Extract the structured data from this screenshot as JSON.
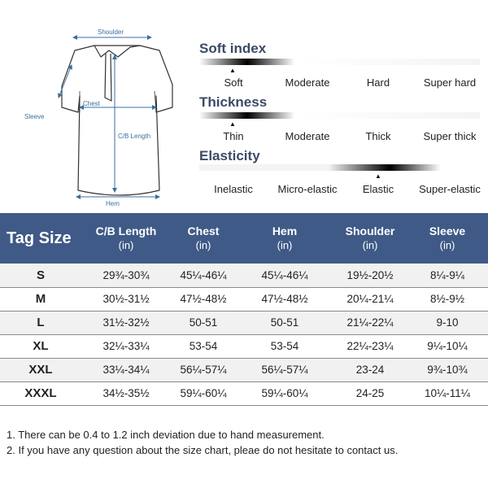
{
  "diagram": {
    "shoulder_label": "Shoulder",
    "chest_label": "Chest",
    "sleeve_label": "Sleeve",
    "cb_length_label": "C/B Length",
    "hem_label": "Hem"
  },
  "scales": {
    "soft": {
      "title": "Soft index",
      "labels": [
        "Soft",
        "Moderate",
        "Hard",
        "Super hard"
      ],
      "selected": "Soft"
    },
    "thickness": {
      "title": "Thickness",
      "labels": [
        "Thin",
        "Moderate",
        "Thick",
        "Super thick"
      ],
      "selected": "Thin"
    },
    "elasticity": {
      "title": "Elasticity",
      "labels": [
        "Inelastic",
        "Micro-elastic",
        "Elastic",
        "Super-elastic"
      ],
      "selected": "Elastic"
    }
  },
  "table": {
    "headers": {
      "tag_size": "Tag Size",
      "cb_length": "C/B Length",
      "chest": "Chest",
      "hem": "Hem",
      "shoulder": "Shoulder",
      "sleeve": "Sleeve",
      "unit": "(in)"
    },
    "rows": [
      {
        "size": "S",
        "cb_length": "29¾-30¾",
        "chest": "45¼-46¼",
        "hem": "45¼-46¼",
        "shoulder": "19½-20½",
        "sleeve": "8¼-9¼"
      },
      {
        "size": "M",
        "cb_length": "30½-31½",
        "chest": "47½-48½",
        "hem": "47½-48½",
        "shoulder": "20¼-21¼",
        "sleeve": "8½-9½"
      },
      {
        "size": "L",
        "cb_length": "31½-32½",
        "chest": "50-51",
        "hem": "50-51",
        "shoulder": "21¼-22¼",
        "sleeve": "9-10"
      },
      {
        "size": "XL",
        "cb_length": "32¼-33¼",
        "chest": "53-54",
        "hem": "53-54",
        "shoulder": "22¼-23¼",
        "sleeve": "9¼-10¼"
      },
      {
        "size": "XXL",
        "cb_length": "33¼-34¼",
        "chest": "56¼-57¼",
        "hem": "56¼-57¼",
        "shoulder": "23-24",
        "sleeve": "9¾-10¾"
      },
      {
        "size": "XXXL",
        "cb_length": "34½-35½",
        "chest": "59¼-60¼",
        "hem": "59¼-60¼",
        "shoulder": "24-25",
        "sleeve": "10¼-11¼"
      }
    ]
  },
  "notes": {
    "note1": "1. There can be 0.4 to 1.2 inch deviation due to hand measurement.",
    "note2": "2. If you have any question about the size chart, pleae do not hesitate to contact us."
  },
  "colors": {
    "header_bg": "#3f5a87",
    "title_text": "#3c4a66",
    "measure_line": "#3a6fa0"
  }
}
